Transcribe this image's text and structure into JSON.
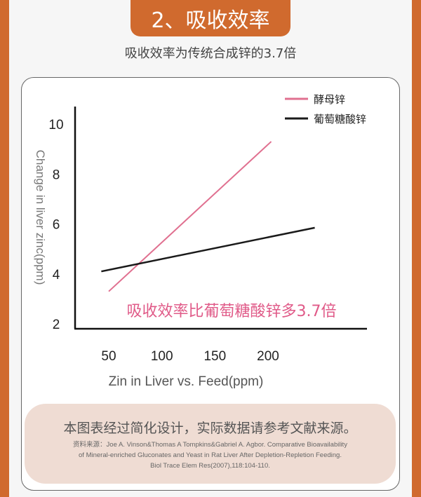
{
  "header": {
    "title": "2、吸收效率",
    "subtitle": "吸收效率为传统合成锌的3.7倍"
  },
  "colors": {
    "brand": "#d06a2e",
    "yeast": "#e07090",
    "gluconate": "#1a1a1a",
    "annotation": "#e05a88"
  },
  "chart_data": {
    "type": "line",
    "xlabel": "Zin in Liver vs. Feed(ppm)",
    "ylabel": "Change in liver zinc(ppm)",
    "xticks": [
      50,
      100,
      150,
      200
    ],
    "yticks": [
      2,
      4,
      6,
      8,
      10
    ],
    "xlim": [
      50,
      200
    ],
    "ylim": [
      2,
      10
    ],
    "grid": false,
    "legend_position": "top-right",
    "series": [
      {
        "name": "酵母锌",
        "color": "#e07090",
        "points": [
          [
            50,
            3.3
          ],
          [
            203,
            9.3
          ]
        ]
      },
      {
        "name": "葡萄糖酸锌",
        "color": "#1a1a1a",
        "points": [
          [
            43,
            4.1
          ],
          [
            244,
            5.85
          ]
        ]
      }
    ],
    "annotation": "吸收效率比葡萄糖酸锌多3.7倍"
  },
  "note": {
    "main": "本图表经过简化设计，实际数据请参考文献来源。",
    "source_lines": [
      "资料来源：Joe A. Vinson&Thomas A Tompkins&Gabriel A. Agbor. Comparative Bioavailability",
      "of Mineral-enriched Gluconates and Yeast in Rat Liver After Depletion-Repletion Feeding.",
      "Biol Trace Elem Res(2007),118:104-110."
    ]
  }
}
